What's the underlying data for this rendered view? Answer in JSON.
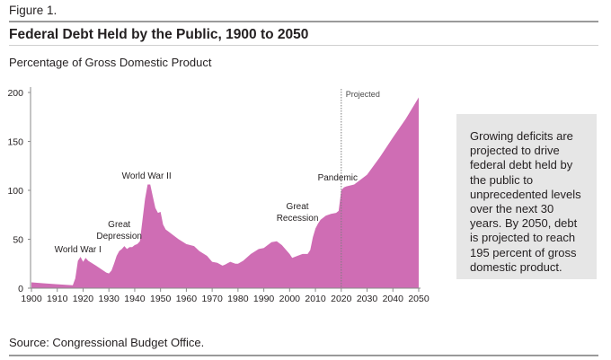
{
  "figure_label": "Figure 1.",
  "title": "Federal Debt Held by the Public, 1900 to 2050",
  "subtitle": "Percentage of Gross Domestic Product",
  "callout": "Growing deficits are projected to drive federal debt held by the public to unprecedented levels over the next 30 years. By 2050, debt is projected to reach 195 percent of gross domestic product.",
  "source": "Source: Congressional Budget Office.",
  "colors": {
    "fill": "#cf6db4",
    "axis": "#8a8a8a",
    "text": "#231f20",
    "callout_bg": "#e6e6e6"
  },
  "chart_data": {
    "type": "area",
    "title": "Federal Debt Held by the Public, 1900 to 2050",
    "ylabel": "Percentage of Gross Domestic Product",
    "xlim": [
      1900,
      2050
    ],
    "ylim": [
      0,
      200
    ],
    "x_ticks": [
      1900,
      1910,
      1920,
      1930,
      1940,
      1950,
      1960,
      1970,
      1980,
      1990,
      2000,
      2010,
      2020,
      2030,
      2040,
      2050
    ],
    "y_ticks": [
      0,
      50,
      100,
      150,
      200
    ],
    "grid": false,
    "projection_start": 2020,
    "projection_label": "Projected",
    "series": [
      {
        "x": [
          1900,
          1905,
          1910,
          1916,
          1917,
          1918,
          1919,
          1920,
          1921,
          1922,
          1925,
          1929,
          1930,
          1931,
          1932,
          1933,
          1934,
          1935,
          1936,
          1937,
          1938,
          1939,
          1940,
          1941,
          1942,
          1943,
          1944,
          1945,
          1946,
          1947,
          1948,
          1949,
          1950,
          1951,
          1952,
          1953,
          1955,
          1957,
          1960,
          1963,
          1965,
          1968,
          1970,
          1972,
          1974,
          1975,
          1977,
          1979,
          1980,
          1982,
          1985,
          1988,
          1990,
          1993,
          1995,
          1997,
          2000,
          2001,
          2003,
          2005,
          2007,
          2008,
          2009,
          2010,
          2011,
          2012,
          2014,
          2016,
          2018,
          2019,
          2020,
          2021,
          2022,
          2025,
          2030,
          2035,
          2040,
          2045,
          2050
        ],
        "y": [
          6,
          5,
          4,
          3,
          10,
          28,
          32,
          27,
          31,
          28,
          23,
          16,
          15,
          18,
          25,
          33,
          38,
          40,
          43,
          40,
          42,
          42,
          44,
          45,
          48,
          70,
          91,
          106,
          106,
          94,
          82,
          77,
          78,
          65,
          60,
          58,
          54,
          50,
          45,
          43,
          38,
          33,
          27,
          26,
          23,
          24,
          27,
          25,
          25,
          28,
          35,
          40,
          41,
          47,
          48,
          44,
          35,
          31,
          33,
          35,
          35,
          39,
          52,
          61,
          66,
          70,
          74,
          76,
          77,
          79,
          100,
          103,
          104,
          106,
          116,
          134,
          154,
          173,
          195
        ]
      }
    ],
    "annotations": [
      {
        "text": "World War I",
        "x": 1918
      },
      {
        "text": "Great Depression",
        "x": 1934
      },
      {
        "text": "World War II",
        "x": 1946
      },
      {
        "text": "Great Recession",
        "x": 2010
      },
      {
        "text": "Pandemic",
        "x": 2020
      }
    ]
  }
}
